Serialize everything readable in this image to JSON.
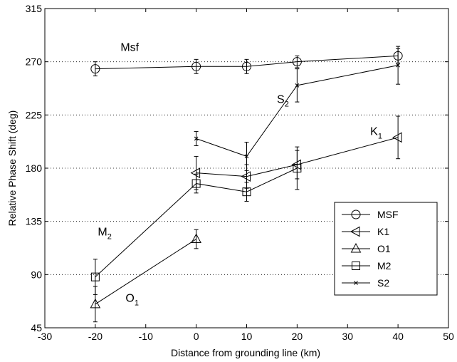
{
  "chart_data": {
    "type": "line",
    "xlabel": "Distance from grounding line (km)",
    "ylabel": "Relative Phase Shift (deg)",
    "xlim": [
      -30,
      50
    ],
    "ylim": [
      45,
      315
    ],
    "xticks": [
      -30,
      -20,
      -10,
      0,
      10,
      20,
      30,
      40,
      50
    ],
    "yticks": [
      45,
      90,
      135,
      180,
      225,
      270,
      315
    ],
    "grid": "horizontal dotted",
    "legend_placement": "lower-right",
    "series": [
      {
        "name": "MSF",
        "marker": "circle",
        "points": [
          {
            "x": -20,
            "y": 264,
            "err": 6
          },
          {
            "x": 0,
            "y": 266,
            "err": 6
          },
          {
            "x": 10,
            "y": 266,
            "err": 6
          },
          {
            "x": 20,
            "y": 270,
            "err": 5
          },
          {
            "x": 40,
            "y": 275,
            "err": 6
          }
        ]
      },
      {
        "name": "K1",
        "marker": "triangle-left",
        "points": [
          {
            "x": 0,
            "y": 176,
            "err": 14
          },
          {
            "x": 10,
            "y": 173,
            "err": 10
          },
          {
            "x": 20,
            "y": 183,
            "err": 12
          },
          {
            "x": 40,
            "y": 206,
            "err": 18
          }
        ]
      },
      {
        "name": "O1",
        "marker": "triangle-up",
        "points": [
          {
            "x": -20,
            "y": 65,
            "err": 15
          },
          {
            "x": 0,
            "y": 120,
            "err": 8
          }
        ]
      },
      {
        "name": "M2",
        "marker": "square",
        "points": [
          {
            "x": -20,
            "y": 88,
            "err": 15
          },
          {
            "x": 0,
            "y": 167,
            "err": 8
          },
          {
            "x": 10,
            "y": 160,
            "err": 8
          },
          {
            "x": 20,
            "y": 180,
            "err": 18
          }
        ]
      },
      {
        "name": "S2",
        "marker": "x",
        "points": [
          {
            "x": 0,
            "y": 205,
            "err": 6
          },
          {
            "x": 10,
            "y": 190,
            "err": 12
          },
          {
            "x": 20,
            "y": 250,
            "err": 14
          },
          {
            "x": 40,
            "y": 267,
            "err": 16
          }
        ]
      }
    ],
    "annotations": [
      {
        "text": "Msf",
        "sub": "",
        "x": -15,
        "y": 279
      },
      {
        "text": "S",
        "sub": "2",
        "x": 16,
        "y": 235
      },
      {
        "text": "K",
        "sub": "1",
        "x": 34.5,
        "y": 208
      },
      {
        "text": "M",
        "sub": "2",
        "x": -19.5,
        "y": 123
      },
      {
        "text": "O",
        "sub": "1",
        "x": -14,
        "y": 67
      }
    ]
  }
}
